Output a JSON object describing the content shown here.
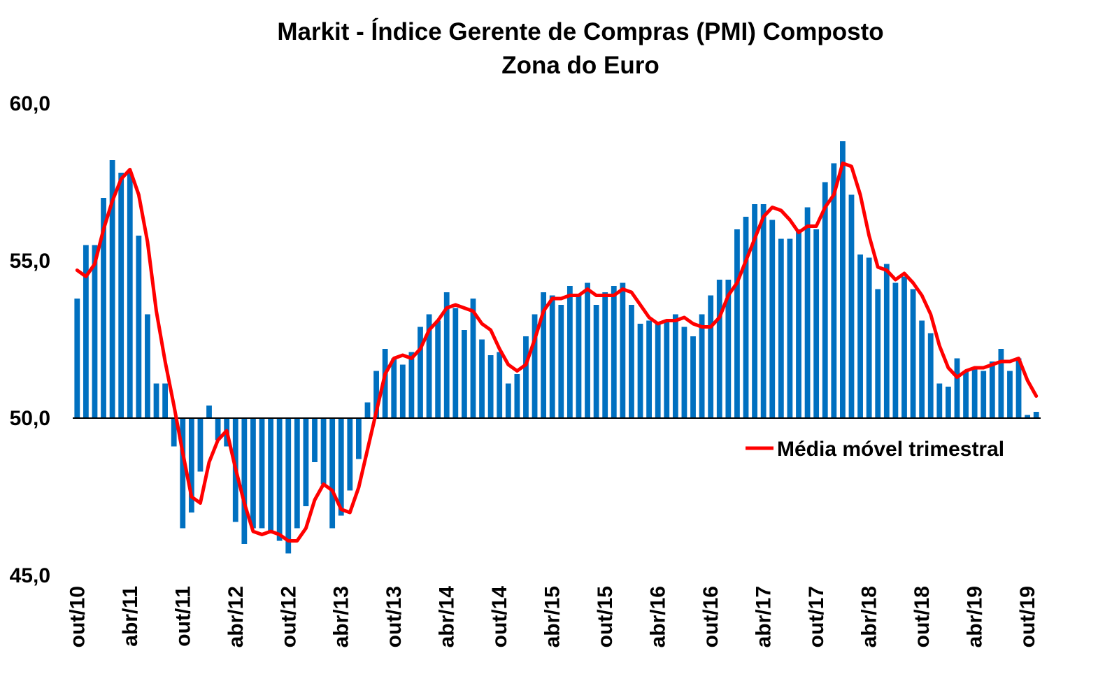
{
  "chart_data": {
    "type": "bar",
    "title": "Markit - Índice Gerente de Compras (PMI) Composto",
    "subtitle": "Zona do Euro",
    "xlabel": "",
    "ylabel": "",
    "ylim": [
      45,
      60
    ],
    "y_ticks": [
      "45,0",
      "50,0",
      "55,0",
      "60,0"
    ],
    "y_tick_values": [
      45,
      50,
      55,
      60
    ],
    "baseline": 50,
    "grid": false,
    "legend_position": "right, below baseline",
    "x_tick_labels": [
      {
        "index": 0,
        "label": "out/10"
      },
      {
        "index": 6,
        "label": "abr/11"
      },
      {
        "index": 12,
        "label": "out/11"
      },
      {
        "index": 18,
        "label": "abr/12"
      },
      {
        "index": 24,
        "label": "out/12"
      },
      {
        "index": 30,
        "label": "abr/13"
      },
      {
        "index": 36,
        "label": "out/13"
      },
      {
        "index": 42,
        "label": "abr/14"
      },
      {
        "index": 48,
        "label": "out/14"
      },
      {
        "index": 54,
        "label": "abr/15"
      },
      {
        "index": 60,
        "label": "out/15"
      },
      {
        "index": 66,
        "label": "abr/16"
      },
      {
        "index": 72,
        "label": "out/16"
      },
      {
        "index": 78,
        "label": "abr/17"
      },
      {
        "index": 84,
        "label": "out/17"
      },
      {
        "index": 90,
        "label": "abr/18"
      },
      {
        "index": 96,
        "label": "out/18"
      },
      {
        "index": 102,
        "label": "abr/19"
      },
      {
        "index": 108,
        "label": "out/19"
      }
    ],
    "series": [
      {
        "type": "bar",
        "color": "#0070C0",
        "values": [
          53.8,
          55.5,
          55.5,
          57.0,
          58.2,
          57.8,
          57.8,
          55.8,
          53.3,
          51.1,
          51.1,
          49.1,
          46.5,
          47.0,
          48.3,
          50.4,
          49.3,
          49.1,
          46.7,
          46.0,
          46.5,
          46.5,
          46.4,
          46.1,
          45.7,
          46.5,
          47.2,
          48.6,
          47.9,
          46.5,
          46.9,
          47.7,
          48.7,
          50.5,
          51.5,
          52.2,
          51.9,
          51.7,
          52.1,
          52.9,
          53.3,
          53.1,
          54.0,
          53.5,
          52.8,
          53.8,
          52.5,
          52.0,
          52.1,
          51.1,
          51.4,
          52.6,
          53.3,
          54.0,
          53.9,
          53.6,
          54.2,
          53.9,
          54.3,
          53.6,
          54.0,
          54.2,
          54.3,
          53.6,
          53.0,
          53.1,
          53.0,
          53.1,
          53.3,
          52.9,
          52.6,
          53.3,
          53.9,
          54.4,
          54.4,
          56.0,
          56.4,
          56.8,
          56.8,
          56.3,
          55.7,
          55.7,
          56.0,
          56.7,
          56.0,
          57.5,
          58.1,
          58.8,
          57.1,
          55.2,
          55.1,
          54.1,
          54.9,
          54.3,
          54.5,
          54.1,
          53.1,
          52.7,
          51.1,
          51.0,
          51.9,
          51.5,
          51.6,
          51.5,
          51.8,
          52.2,
          51.5,
          51.9,
          50.1,
          50.2
        ]
      },
      {
        "name": "Média móvel trimestral",
        "type": "line",
        "color": "#FF0000",
        "values": [
          54.7,
          54.5,
          54.9,
          56.0,
          56.9,
          57.6,
          57.9,
          57.1,
          55.6,
          53.4,
          51.8,
          50.4,
          48.9,
          47.5,
          47.3,
          48.6,
          49.3,
          49.6,
          48.4,
          47.3,
          46.4,
          46.3,
          46.4,
          46.3,
          46.1,
          46.1,
          46.5,
          47.4,
          47.9,
          47.7,
          47.1,
          47.0,
          47.8,
          49.0,
          50.2,
          51.4,
          51.9,
          52.0,
          51.9,
          52.2,
          52.8,
          53.1,
          53.5,
          53.6,
          53.5,
          53.4,
          53.0,
          52.8,
          52.2,
          51.7,
          51.5,
          51.7,
          52.5,
          53.4,
          53.8,
          53.8,
          53.9,
          53.9,
          54.1,
          53.9,
          53.9,
          53.9,
          54.1,
          54.0,
          53.6,
          53.2,
          53.0,
          53.1,
          53.1,
          53.2,
          53.0,
          52.9,
          52.9,
          53.2,
          53.9,
          54.3,
          55.0,
          55.7,
          56.4,
          56.7,
          56.6,
          56.3,
          55.9,
          56.1,
          56.1,
          56.7,
          57.1,
          58.1,
          58.0,
          57.1,
          55.8,
          54.8,
          54.7,
          54.4,
          54.6,
          54.3,
          53.9,
          53.3,
          52.3,
          51.6,
          51.3,
          51.5,
          51.6,
          51.6,
          51.7,
          51.8,
          51.8,
          51.9,
          51.2,
          50.7
        ]
      }
    ]
  }
}
